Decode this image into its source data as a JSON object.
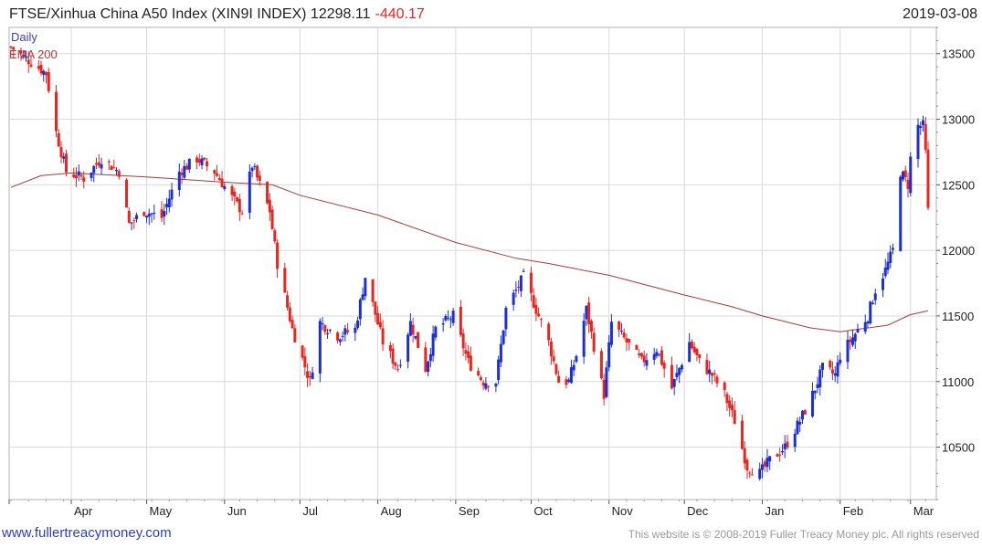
{
  "header": {
    "title": "FTSE/Xinhua China A50 Index (XIN9I INDEX) 12298.11",
    "change": "-440.17",
    "date": "2019-03-08"
  },
  "legend": {
    "daily": "Daily",
    "ema": "EMA 200"
  },
  "footer": {
    "link": "www.fullertreacymoney.com",
    "copyright": "This website is © 2008-2019 Fuller Treacy Money plc. All rights reserved"
  },
  "colors": {
    "up": "#1a2fd6",
    "down": "#e8251f",
    "ema": "#a83a3a",
    "grid": "#d9d9d9",
    "accent_change": "#e8251f"
  },
  "chart_data": {
    "type": "candlestick",
    "title": "FTSE/Xinhua China A50 Index (XIN9I INDEX)",
    "last": 12298.11,
    "change": -440.17,
    "ylim": [
      10100,
      13700
    ],
    "yticks": [
      10500,
      11000,
      11500,
      12000,
      12500,
      13000,
      13500
    ],
    "x_range": [
      "2018-03-08",
      "2019-03-08"
    ],
    "xticks": [
      {
        "label": "Apr",
        "date": "2018-04-01"
      },
      {
        "label": "May",
        "date": "2018-05-01"
      },
      {
        "label": "Jun",
        "date": "2018-06-01"
      },
      {
        "label": "Jul",
        "date": "2018-07-01"
      },
      {
        "label": "Aug",
        "date": "2018-08-01"
      },
      {
        "label": "Sep",
        "date": "2018-09-01"
      },
      {
        "label": "Oct",
        "date": "2018-10-01"
      },
      {
        "label": "Nov",
        "date": "2018-11-01"
      },
      {
        "label": "Dec",
        "date": "2018-12-01"
      },
      {
        "label": "Jan",
        "date": "2019-01-01"
      },
      {
        "label": "Feb",
        "date": "2019-02-01"
      },
      {
        "label": "Mar",
        "date": "2019-03-01"
      }
    ],
    "grid": true,
    "price_path": [
      [
        "2018-03-08",
        13550
      ],
      [
        "2018-03-15",
        13450
      ],
      [
        "2018-03-22",
        13350
      ],
      [
        "2018-03-26",
        12900
      ],
      [
        "2018-03-30",
        12600
      ],
      [
        "2018-04-06",
        12550
      ],
      [
        "2018-04-13",
        12700
      ],
      [
        "2018-04-20",
        12600
      ],
      [
        "2018-04-24",
        12200
      ],
      [
        "2018-04-30",
        12300
      ],
      [
        "2018-05-07",
        12250
      ],
      [
        "2018-05-14",
        12600
      ],
      [
        "2018-05-21",
        12700
      ],
      [
        "2018-05-28",
        12600
      ],
      [
        "2018-06-04",
        12400
      ],
      [
        "2018-06-08",
        12300
      ],
      [
        "2018-06-12",
        12650
      ],
      [
        "2018-06-19",
        12300
      ],
      [
        "2018-06-22",
        11900
      ],
      [
        "2018-06-28",
        11400
      ],
      [
        "2018-07-05",
        11000
      ],
      [
        "2018-07-09",
        11450
      ],
      [
        "2018-07-16",
        11350
      ],
      [
        "2018-07-23",
        11400
      ],
      [
        "2018-07-27",
        11800
      ],
      [
        "2018-08-03",
        11300
      ],
      [
        "2018-08-09",
        11100
      ],
      [
        "2018-08-14",
        11450
      ],
      [
        "2018-08-20",
        11100
      ],
      [
        "2018-08-24",
        11400
      ],
      [
        "2018-08-31",
        11500
      ],
      [
        "2018-09-06",
        11150
      ],
      [
        "2018-09-12",
        11000
      ],
      [
        "2018-09-17",
        11000
      ],
      [
        "2018-09-21",
        11550
      ],
      [
        "2018-09-28",
        11800
      ],
      [
        "2018-10-08",
        11300
      ],
      [
        "2018-10-12",
        11000
      ],
      [
        "2018-10-16",
        11000
      ],
      [
        "2018-10-19",
        11200
      ],
      [
        "2018-10-23",
        11550
      ],
      [
        "2018-10-30",
        10900
      ],
      [
        "2018-11-02",
        11450
      ],
      [
        "2018-11-08",
        11300
      ],
      [
        "2018-11-14",
        11150
      ],
      [
        "2018-11-20",
        11250
      ],
      [
        "2018-11-26",
        10950
      ],
      [
        "2018-12-03",
        11300
      ],
      [
        "2018-12-07",
        11150
      ],
      [
        "2018-12-12",
        11050
      ],
      [
        "2018-12-17",
        10900
      ],
      [
        "2018-12-21",
        10700
      ],
      [
        "2018-12-26",
        10350
      ],
      [
        "2018-12-31",
        10300
      ],
      [
        "2019-01-04",
        10400
      ],
      [
        "2019-01-10",
        10500
      ],
      [
        "2019-01-16",
        10700
      ],
      [
        "2019-01-21",
        10900
      ],
      [
        "2019-01-25",
        11100
      ],
      [
        "2019-01-30",
        11050
      ],
      [
        "2019-02-01",
        11200
      ],
      [
        "2019-02-12",
        11500
      ],
      [
        "2019-02-15",
        11700
      ],
      [
        "2019-02-19",
        11850
      ],
      [
        "2019-02-22",
        12000
      ],
      [
        "2019-02-25",
        12600
      ],
      [
        "2019-02-28",
        12500
      ],
      [
        "2019-03-01",
        12700
      ],
      [
        "2019-03-04",
        12950
      ],
      [
        "2019-03-06",
        12950
      ],
      [
        "2019-03-07",
        12740
      ],
      [
        "2019-03-08",
        12298
      ]
    ],
    "ema200": [
      [
        "2018-03-08",
        12480
      ],
      [
        "2018-03-20",
        12570
      ],
      [
        "2018-04-01",
        12590
      ],
      [
        "2018-05-01",
        12560
      ],
      [
        "2018-06-01",
        12520
      ],
      [
        "2018-06-20",
        12500
      ],
      [
        "2018-07-01",
        12420
      ],
      [
        "2018-08-01",
        12270
      ],
      [
        "2018-09-01",
        12060
      ],
      [
        "2018-09-25",
        11940
      ],
      [
        "2018-10-08",
        11900
      ],
      [
        "2018-11-01",
        11810
      ],
      [
        "2018-12-01",
        11660
      ],
      [
        "2018-12-20",
        11570
      ],
      [
        "2019-01-01",
        11500
      ],
      [
        "2019-01-20",
        11410
      ],
      [
        "2019-02-01",
        11380
      ],
      [
        "2019-02-20",
        11430
      ],
      [
        "2019-03-01",
        11510
      ],
      [
        "2019-03-08",
        11540
      ]
    ]
  }
}
